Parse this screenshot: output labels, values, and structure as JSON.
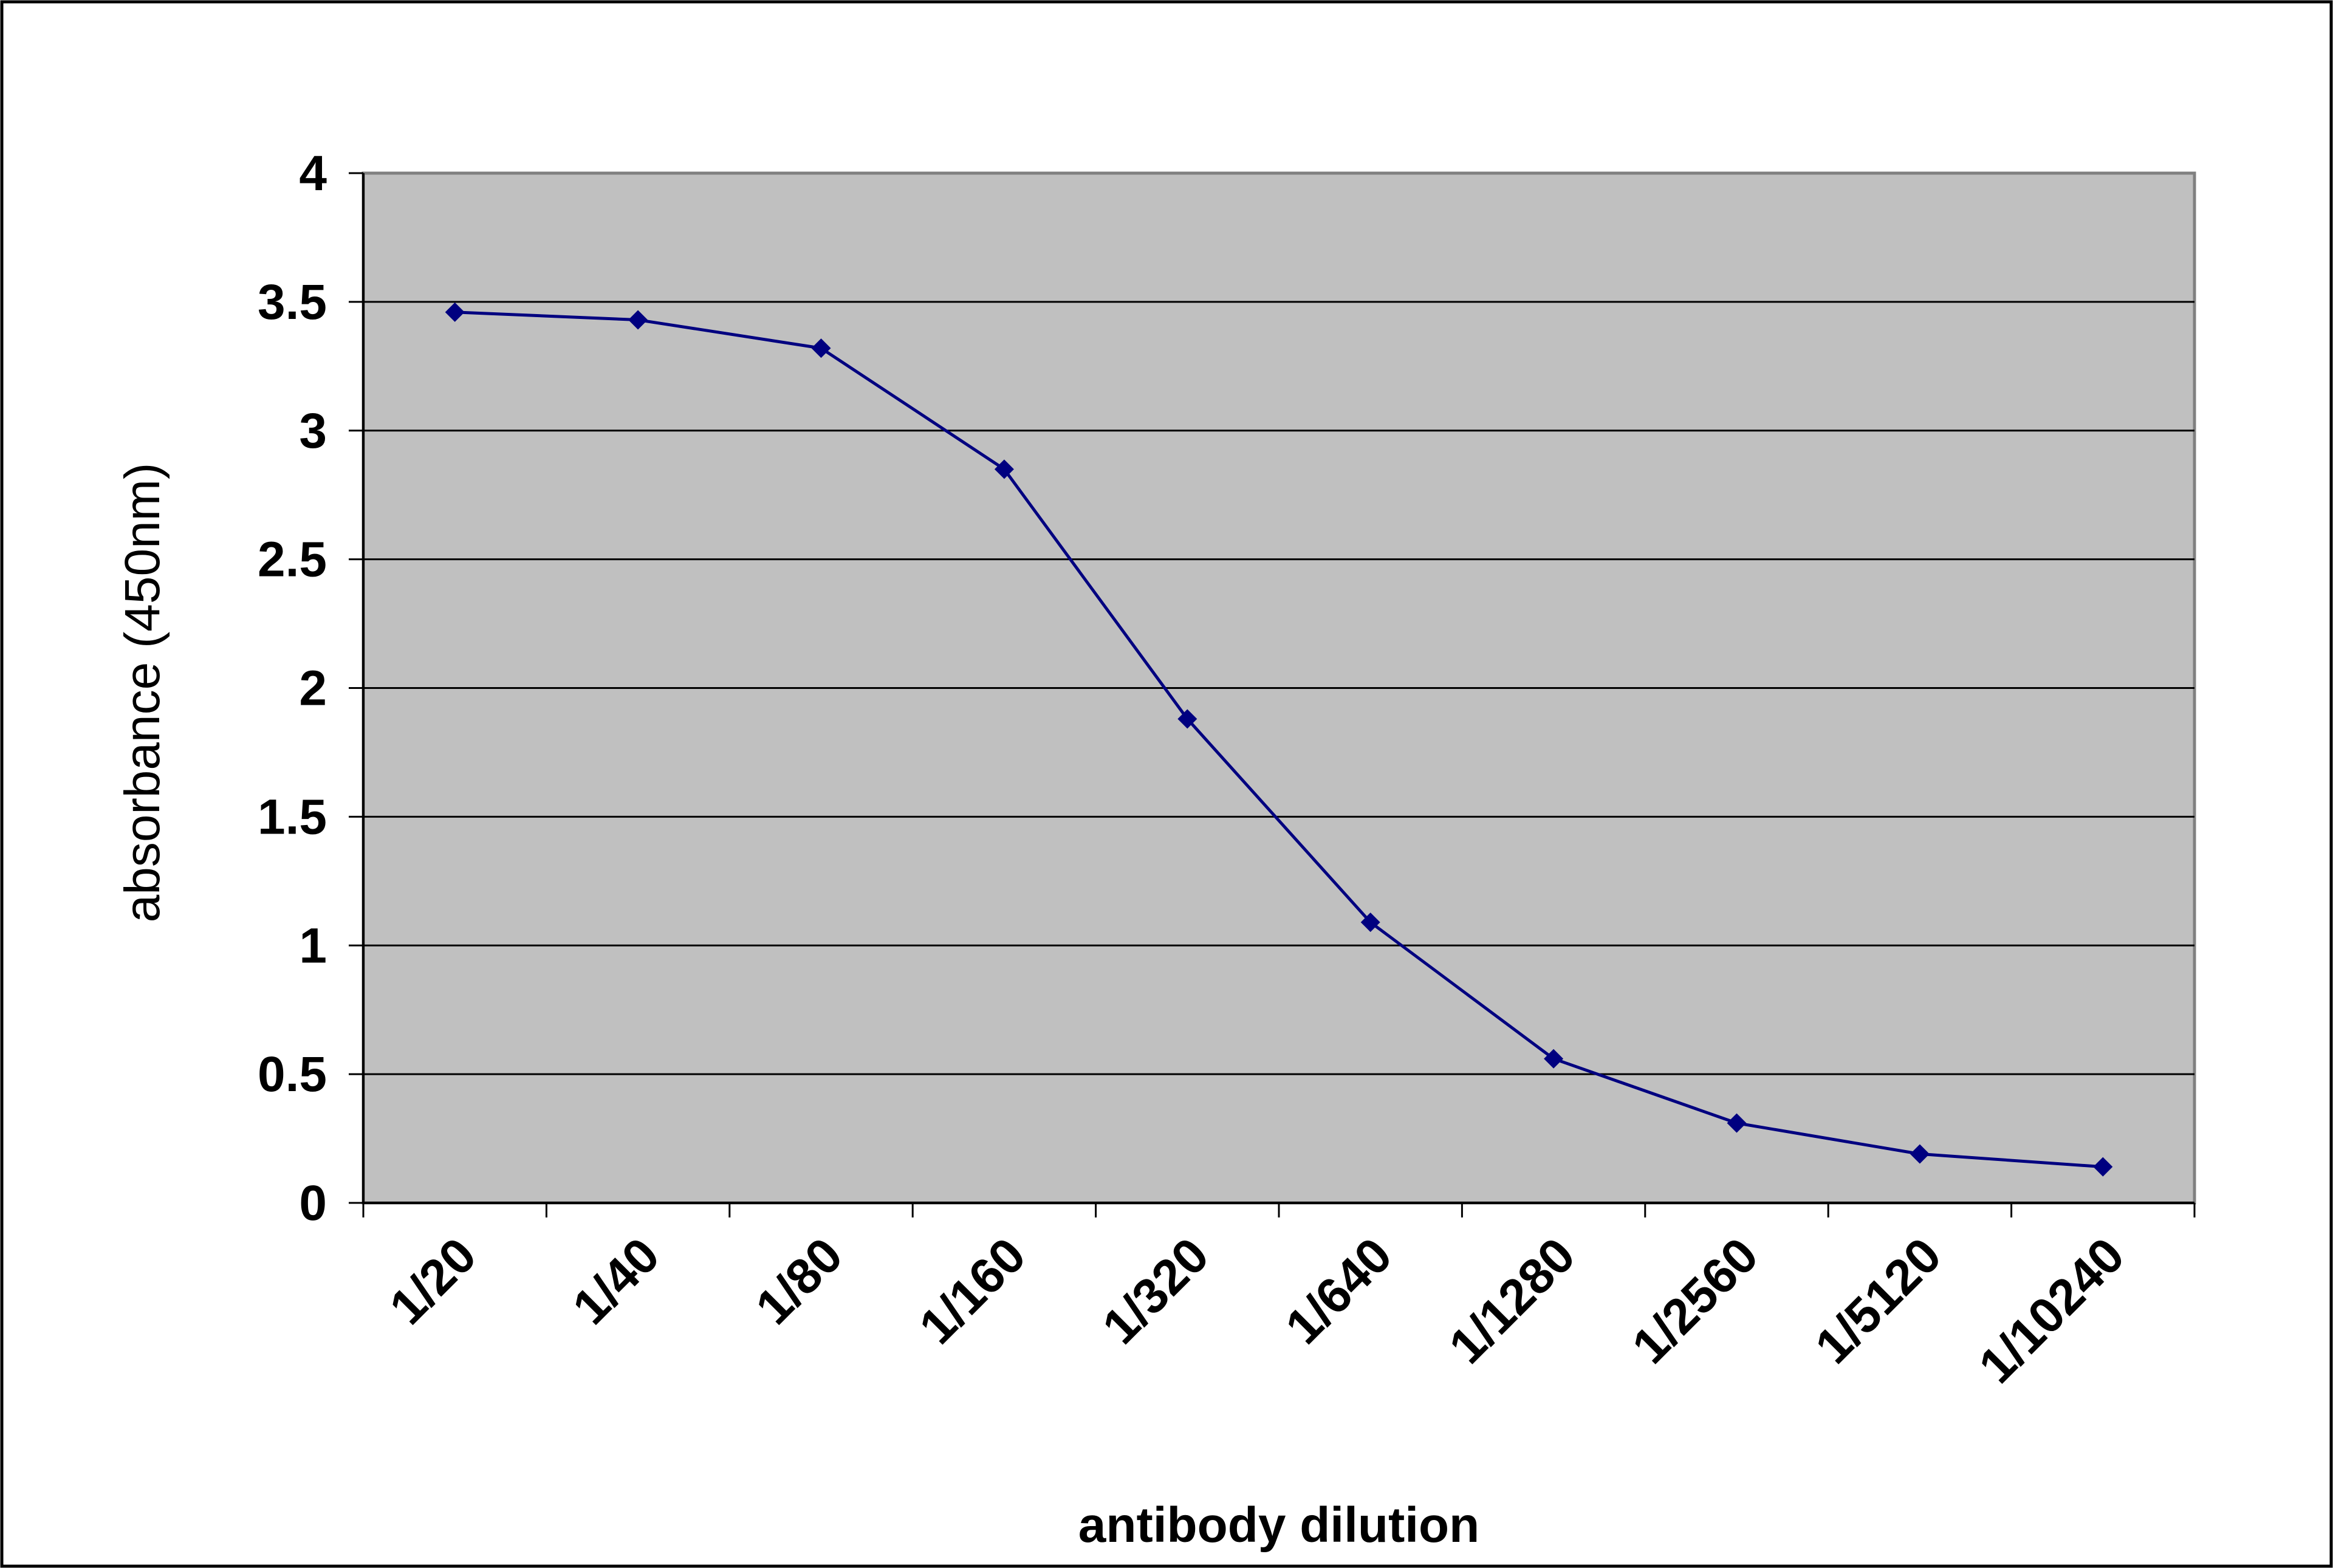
{
  "chart_data": {
    "type": "line",
    "title": "",
    "xlabel": "antibody dilution",
    "ylabel": "absorbance (450nm)",
    "categories": [
      "1/20",
      "1/40",
      "1/80",
      "1/160",
      "1/320",
      "1/640",
      "1/1280",
      "1/2560",
      "1/5120",
      "1/10240"
    ],
    "series": [
      {
        "values": [
          3.46,
          3.43,
          3.32,
          2.85,
          1.88,
          1.09,
          0.56,
          0.31,
          0.19,
          0.14
        ]
      }
    ],
    "ylim": [
      0,
      4
    ],
    "yticks": [
      0,
      0.5,
      1,
      1.5,
      2,
      2.5,
      3,
      3.5,
      4
    ],
    "ytick_labels": [
      "0",
      "0.5",
      "1",
      "1.5",
      "2",
      "2.5",
      "3",
      "3.5",
      "4"
    ],
    "grid": "horizontal",
    "marker": "diamond",
    "colors": {
      "plot_background": "#c0c0c0",
      "series": "#000080",
      "gridline": "#000000",
      "frame": "#808080"
    }
  }
}
